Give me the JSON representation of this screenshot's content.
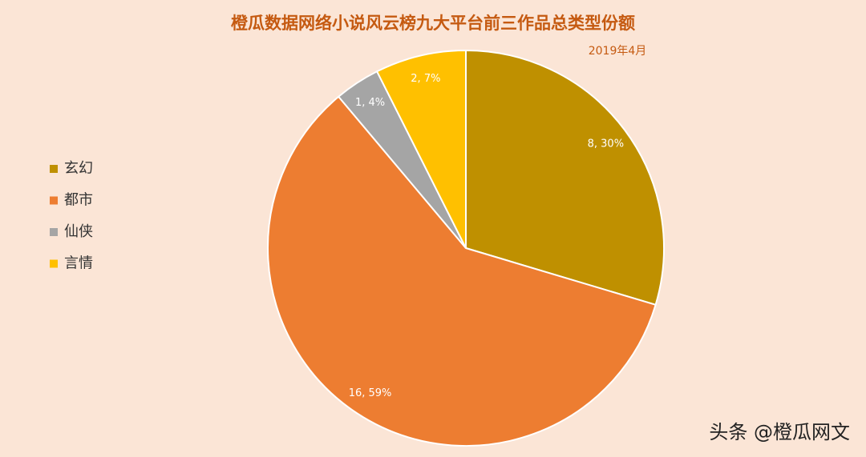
{
  "chart_data": {
    "type": "pie",
    "title": "橙瓜数据网络小说风云榜九大平台前三作品总类型份额",
    "subtitle": "2019年4月",
    "categories": [
      "玄幻",
      "都市",
      "仙侠",
      "言情"
    ],
    "values": [
      8,
      16,
      1,
      2
    ],
    "value_labels": [
      "8, 30%",
      "16, 59%",
      "1, 4%",
      "2, 7%"
    ],
    "colors": [
      "#bf9000",
      "#ed7d31",
      "#a5a5a5",
      "#ffc000"
    ],
    "legend": "left"
  },
  "watermark": "头条 @橙瓜网文"
}
